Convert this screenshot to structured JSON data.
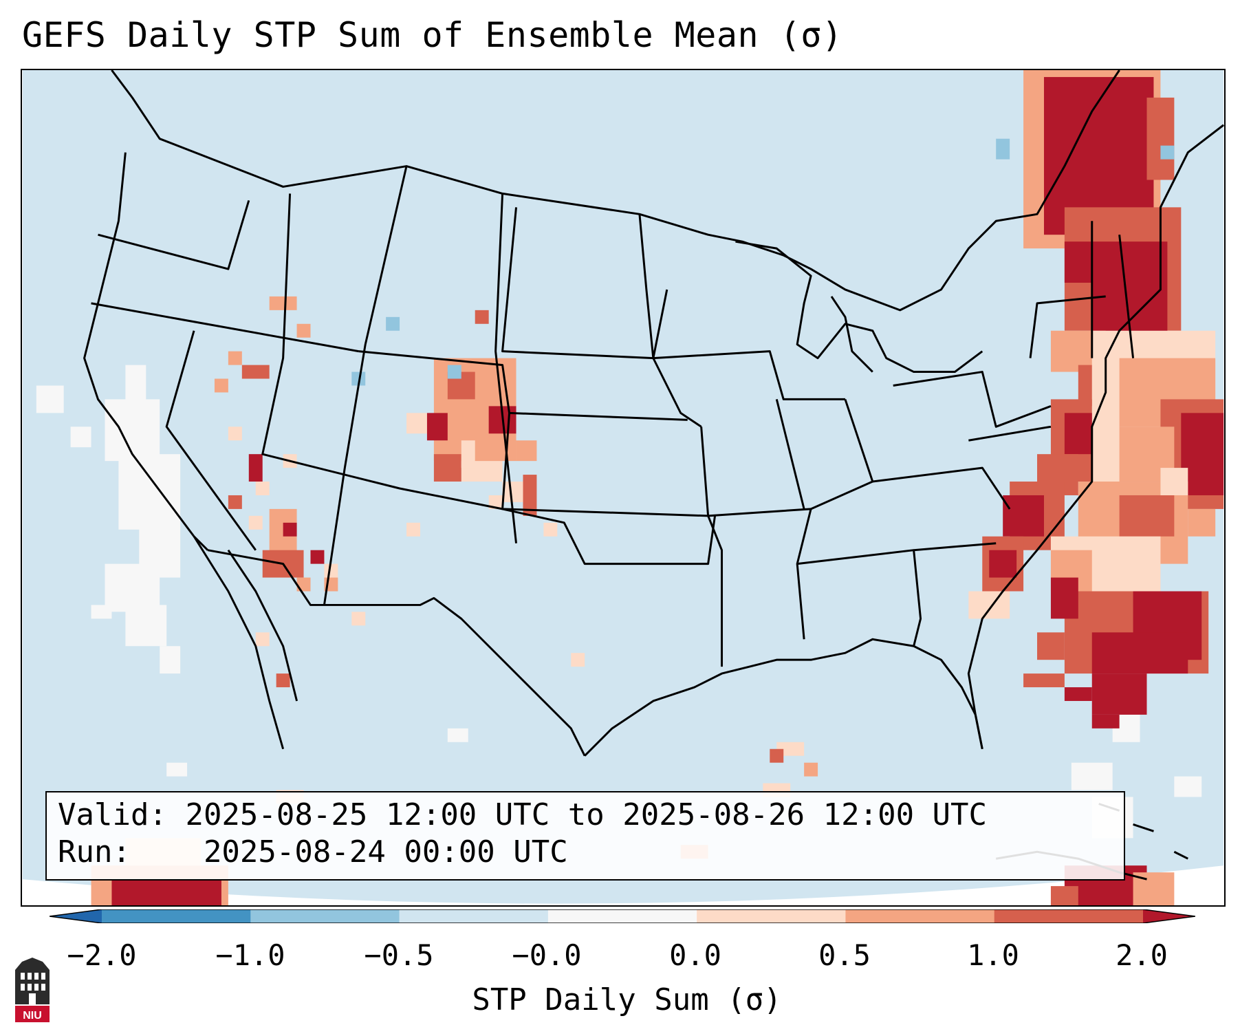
{
  "title": "GEFS Daily STP Sum of Ensemble Mean (σ)",
  "valid_label": "Valid:",
  "valid_range": "2025-08-25 12:00 UTC to 2025-08-26 12:00 UTC",
  "run_label": "Run:",
  "run_time": "2025-08-24 00:00 UTC",
  "colorbar": {
    "label": "STP Daily Sum (σ)",
    "ticks": [
      "−2.0",
      "−1.0",
      "−0.5",
      "−0.0",
      "0.0",
      "0.5",
      "1.0",
      "2.0"
    ],
    "bins": [
      {
        "range": "<-2.0",
        "color": "#2166ac"
      },
      {
        "range": "-2.0 to -1.0",
        "color": "#4393c3"
      },
      {
        "range": "-1.0 to -0.5",
        "color": "#92c5de"
      },
      {
        "range": "-0.5 to -0.0",
        "color": "#d1e5f0"
      },
      {
        "range": "-0.0 to 0.0",
        "color": "#f7f7f7"
      },
      {
        "range": "0.0 to 0.5",
        "color": "#fddbc7"
      },
      {
        "range": "0.5 to 1.0",
        "color": "#f4a582"
      },
      {
        "range": "1.0 to 2.0",
        "color": "#d6604d"
      },
      {
        "range": ">2.0",
        "color": "#b2182b"
      }
    ]
  },
  "logo": {
    "text": "NIU",
    "color": "#c8102e"
  },
  "colors": {
    "background_field": "#d1e5f0",
    "outside_domain": "#ffffff",
    "boundaries": "#000000"
  }
}
